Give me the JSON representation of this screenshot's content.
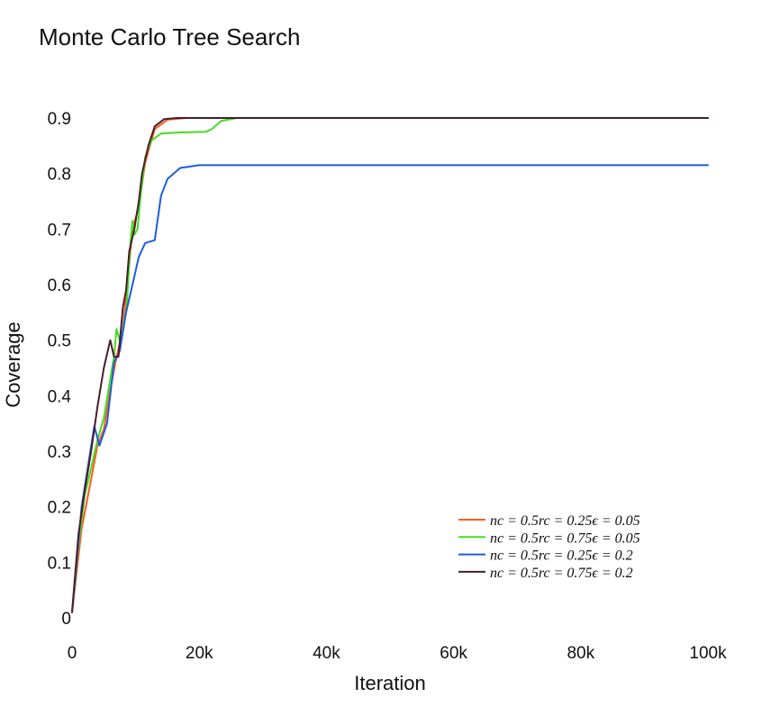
{
  "chart_data": {
    "type": "line",
    "title": "Monte Carlo Tree Search",
    "xlabel": "Iteration",
    "ylabel": "Coverage",
    "xlim": [
      0,
      100000
    ],
    "ylim": [
      0,
      0.9
    ],
    "x_ticks": [
      {
        "value": 0,
        "label": "0"
      },
      {
        "value": 20000,
        "label": "20k"
      },
      {
        "value": 40000,
        "label": "40k"
      },
      {
        "value": 60000,
        "label": "60k"
      },
      {
        "value": 80000,
        "label": "80k"
      },
      {
        "value": 100000,
        "label": "100k"
      }
    ],
    "y_ticks": [
      {
        "value": 0,
        "label": "0"
      },
      {
        "value": 0.1,
        "label": "0.1"
      },
      {
        "value": 0.2,
        "label": "0.2"
      },
      {
        "value": 0.3,
        "label": "0.3"
      },
      {
        "value": 0.4,
        "label": "0.4"
      },
      {
        "value": 0.5,
        "label": "0.5"
      },
      {
        "value": 0.6,
        "label": "0.6"
      },
      {
        "value": 0.7,
        "label": "0.7"
      },
      {
        "value": 0.8,
        "label": "0.8"
      },
      {
        "value": 0.9,
        "label": "0.9"
      }
    ],
    "grid": false,
    "legend_position": "bottom-right",
    "series": [
      {
        "name": "nc = 0.5rc = 0.25ϵ = 0.05",
        "color": "#ff5a1f",
        "points": [
          [
            0,
            0.01
          ],
          [
            1500,
            0.16
          ],
          [
            3000,
            0.25
          ],
          [
            4000,
            0.31
          ],
          [
            5000,
            0.34
          ],
          [
            6000,
            0.41
          ],
          [
            7000,
            0.47
          ],
          [
            8000,
            0.52
          ],
          [
            8700,
            0.6
          ],
          [
            9500,
            0.7
          ],
          [
            10500,
            0.74
          ],
          [
            11500,
            0.82
          ],
          [
            13000,
            0.88
          ],
          [
            15000,
            0.897
          ],
          [
            18000,
            0.9
          ],
          [
            25000,
            0.9
          ],
          [
            100000,
            0.9
          ]
        ]
      },
      {
        "name": "nc = 0.5rc = 0.75ϵ = 0.05",
        "color": "#44dd22",
        "points": [
          [
            0,
            0.01
          ],
          [
            1000,
            0.13
          ],
          [
            2000,
            0.22
          ],
          [
            3000,
            0.27
          ],
          [
            4000,
            0.32
          ],
          [
            5000,
            0.36
          ],
          [
            6000,
            0.43
          ],
          [
            6600,
            0.47
          ],
          [
            7000,
            0.52
          ],
          [
            7500,
            0.5
          ],
          [
            8000,
            0.52
          ],
          [
            8600,
            0.56
          ],
          [
            9200,
            0.68
          ],
          [
            9500,
            0.715
          ],
          [
            9800,
            0.69
          ],
          [
            10300,
            0.7
          ],
          [
            10800,
            0.76
          ],
          [
            11500,
            0.83
          ],
          [
            12500,
            0.86
          ],
          [
            14000,
            0.872
          ],
          [
            17000,
            0.874
          ],
          [
            21000,
            0.875
          ],
          [
            22000,
            0.88
          ],
          [
            23500,
            0.895
          ],
          [
            26000,
            0.9
          ],
          [
            30000,
            0.9
          ],
          [
            100000,
            0.9
          ]
        ]
      },
      {
        "name": "nc = 0.5rc = 0.25ϵ = 0.2",
        "color": "#1f5bdd",
        "points": [
          [
            0,
            0.01
          ],
          [
            1500,
            0.2
          ],
          [
            3500,
            0.345
          ],
          [
            4300,
            0.31
          ],
          [
            5500,
            0.35
          ],
          [
            6600,
            0.46
          ],
          [
            7500,
            0.48
          ],
          [
            8500,
            0.55
          ],
          [
            9500,
            0.6
          ],
          [
            10500,
            0.65
          ],
          [
            11500,
            0.675
          ],
          [
            13000,
            0.68
          ],
          [
            13500,
            0.72
          ],
          [
            14000,
            0.76
          ],
          [
            15000,
            0.79
          ],
          [
            17000,
            0.81
          ],
          [
            20000,
            0.815
          ],
          [
            25000,
            0.815
          ],
          [
            100000,
            0.815
          ]
        ]
      },
      {
        "name": "nc = 0.5rc = 0.75ϵ = 0.2",
        "color": "#4a1d2e",
        "points": [
          [
            0,
            0.01
          ],
          [
            1000,
            0.15
          ],
          [
            2000,
            0.23
          ],
          [
            3000,
            0.3
          ],
          [
            4000,
            0.38
          ],
          [
            5000,
            0.45
          ],
          [
            6000,
            0.5
          ],
          [
            6600,
            0.47
          ],
          [
            7300,
            0.47
          ],
          [
            8000,
            0.56
          ],
          [
            8500,
            0.59
          ],
          [
            9000,
            0.66
          ],
          [
            9800,
            0.7
          ],
          [
            10500,
            0.75
          ],
          [
            11000,
            0.8
          ],
          [
            12000,
            0.85
          ],
          [
            13000,
            0.885
          ],
          [
            14500,
            0.898
          ],
          [
            16500,
            0.9
          ],
          [
            20000,
            0.9
          ],
          [
            100000,
            0.9
          ]
        ]
      }
    ]
  }
}
